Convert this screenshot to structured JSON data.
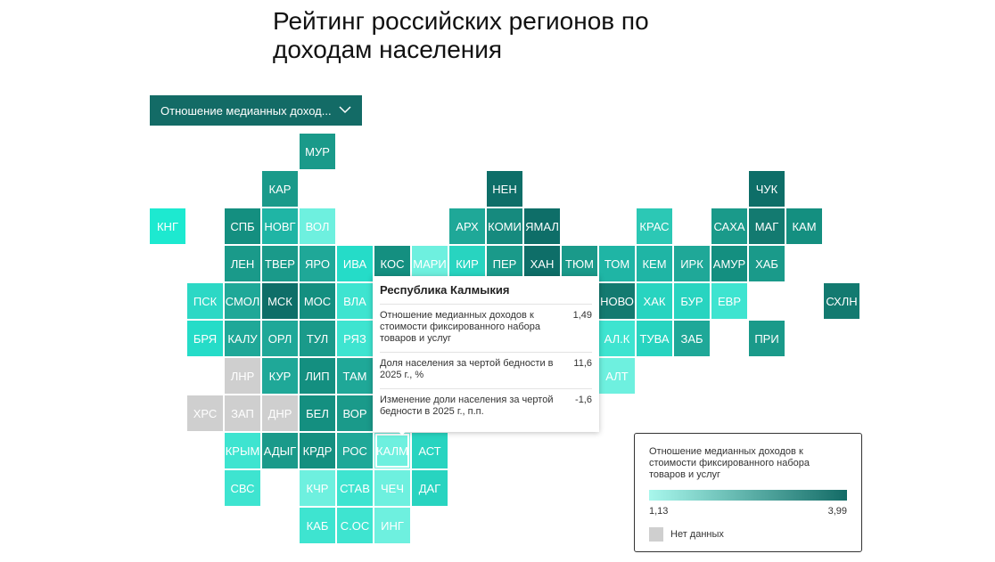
{
  "header": {
    "title": "Рейтинг российских регионов по доходам населения"
  },
  "dropdown": {
    "label": "Отношение медианных доход..."
  },
  "tiles": [
    {
      "label": "МУР",
      "color": "#1a9a8a"
    },
    {
      "label": "КАР",
      "color": "#1a9a8a"
    },
    {
      "label": "НЕН",
      "color": "#0e6e68"
    },
    {
      "label": "ЧУК",
      "color": "#0e6e68"
    },
    {
      "label": "КНГ",
      "color": "#1de9d0"
    },
    {
      "label": "СПБ",
      "color": "#148f80"
    },
    {
      "label": "НОВГ",
      "color": "#1fb5a5"
    },
    {
      "label": "ВОЛ",
      "color": "#6ef0df"
    },
    {
      "label": "АРХ",
      "color": "#1fa898"
    },
    {
      "label": "КОМИ",
      "color": "#168a7e"
    },
    {
      "label": "ЯМАЛ",
      "color": "#0e6e68"
    },
    {
      "label": "КРАС",
      "color": "#2cc8b5"
    },
    {
      "label": "САХА",
      "color": "#1a9a8a"
    },
    {
      "label": "МАГ",
      "color": "#137a70"
    },
    {
      "label": "КАМ",
      "color": "#148f80"
    },
    {
      "label": "ЛЕН",
      "color": "#1a9a8a"
    },
    {
      "label": "ТВЕР",
      "color": "#1a9a8a"
    },
    {
      "label": "ЯРО",
      "color": "#1fa898"
    },
    {
      "label": "ИВА",
      "color": "#25dcc8"
    },
    {
      "label": "КОС",
      "color": "#148f80"
    },
    {
      "label": "МАРИ",
      "color": "#6ef0df"
    },
    {
      "label": "КИР",
      "color": "#28d4c0"
    },
    {
      "label": "ПЕР",
      "color": "#1a9a8a"
    },
    {
      "label": "ХАН",
      "color": "#0e6e68"
    },
    {
      "label": "ТЮМ",
      "color": "#1a9a8a"
    },
    {
      "label": "ТОМ",
      "color": "#1fb5a5"
    },
    {
      "label": "КЕМ",
      "color": "#1fb5a5"
    },
    {
      "label": "ИРК",
      "color": "#1fa898"
    },
    {
      "label": "АМУР",
      "color": "#148f80"
    },
    {
      "label": "ХАБ",
      "color": "#1a9a8a"
    },
    {
      "label": "ПСК",
      "color": "#2cd8c5"
    },
    {
      "label": "СМОЛ",
      "color": "#1fa898"
    },
    {
      "label": "МСК",
      "color": "#0e6e68"
    },
    {
      "label": "МОС",
      "color": "#148f80"
    },
    {
      "label": "ВЛА",
      "color": "#3ee4d0"
    },
    {
      "label": "НОВО",
      "color": "#137a70"
    },
    {
      "label": "ХАК",
      "color": "#28d4c0"
    },
    {
      "label": "БУР",
      "color": "#28d4c0"
    },
    {
      "label": "ЕВР",
      "color": "#3ee4d0"
    },
    {
      "label": "СХЛН",
      "color": "#137a70"
    },
    {
      "label": "БРЯ",
      "color": "#25dcc8"
    },
    {
      "label": "КАЛУ",
      "color": "#1fa898"
    },
    {
      "label": "ОРЛ",
      "color": "#1fa898"
    },
    {
      "label": "ТУЛ",
      "color": "#1a9a8a"
    },
    {
      "label": "РЯЗ",
      "color": "#3ee4d0"
    },
    {
      "label": "АЛ.К",
      "color": "#3ee4d0"
    },
    {
      "label": "ТУВА",
      "color": "#28d4c0"
    },
    {
      "label": "ЗАБ",
      "color": "#1fa898"
    },
    {
      "label": "ПРИ",
      "color": "#1a9a8a"
    },
    {
      "label": "ЛНР",
      "color": "#cfcfcf"
    },
    {
      "label": "КУР",
      "color": "#1fa898"
    },
    {
      "label": "ЛИП",
      "color": "#148f80"
    },
    {
      "label": "ТАМ",
      "color": "#1fa898"
    },
    {
      "label": "АЛТ",
      "color": "#6ef0df"
    },
    {
      "label": "ХРС",
      "color": "#cfcfcf"
    },
    {
      "label": "ЗАП",
      "color": "#cfcfcf"
    },
    {
      "label": "ДНР",
      "color": "#cfcfcf"
    },
    {
      "label": "БЕЛ",
      "color": "#148f80"
    },
    {
      "label": "ВОР",
      "color": "#1a9a8a"
    },
    {
      "label": "КРЫМ",
      "color": "#3ee4d0"
    },
    {
      "label": "АДЫГ",
      "color": "#1a9a8a"
    },
    {
      "label": "КРДР",
      "color": "#148f80"
    },
    {
      "label": "РОС",
      "color": "#1fa898"
    },
    {
      "label": "КАЛМ",
      "color": "#6ef0df"
    },
    {
      "label": "АСТ",
      "color": "#28d4c0"
    },
    {
      "label": "СВС",
      "color": "#3ee4d0"
    },
    {
      "label": "КЧР",
      "color": "#6ef0df"
    },
    {
      "label": "СТАВ",
      "color": "#3ee4d0"
    },
    {
      "label": "ЧЕЧ",
      "color": "#6ef0df"
    },
    {
      "label": "ДАГ",
      "color": "#28d4c0"
    },
    {
      "label": "КАБ",
      "color": "#3ee4d0"
    },
    {
      "label": "С.ОС",
      "color": "#3ee4d0"
    },
    {
      "label": "ИНГ",
      "color": "#6ef0df"
    }
  ],
  "tooltip": {
    "title": "Республика Калмыкия",
    "rows": [
      [
        "Отношение медианных доходов к стоимости фиксированного набора товаров и услуг",
        "1,49"
      ],
      [
        "Доля населения за чертой бедности в 2025 г., %",
        "11,6"
      ],
      [
        "Изменение доли населения за чертой бедности в 2025 г., п.п.",
        "-1,6"
      ]
    ]
  },
  "legend": {
    "title": "Отношение медианных доходов к стоимости фиксированного набора товаров и услуг",
    "min": "1,13",
    "max": "3,99",
    "no_data": "Нет данных"
  }
}
